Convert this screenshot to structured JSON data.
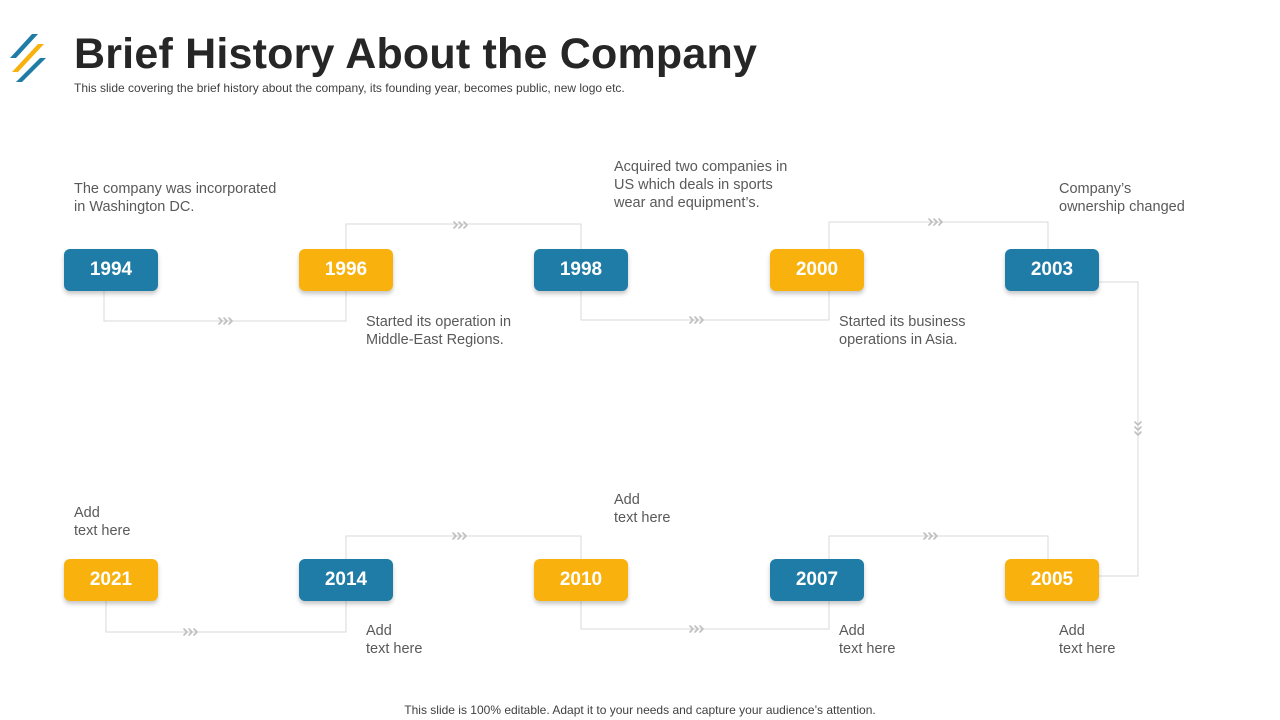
{
  "slide": {
    "title": "Brief History About the Company",
    "subtitle": "This slide covering the brief history about the company, its founding year, becomes public, new logo etc.",
    "footer": "This slide is 100% editable. Adapt it to your needs and capture your audience’s attention."
  },
  "colors": {
    "blue": "#1f7ca6",
    "orange": "#f8b10d",
    "connector": "#d9d9d9",
    "chevron": "#bfbfbf"
  },
  "timeline": {
    "years": [
      "1994",
      "1996",
      "1998",
      "2000",
      "2003",
      "2021",
      "2014",
      "2010",
      "2007",
      "2005"
    ],
    "descriptions": [
      "The company was incorporated\nin Washington DC.",
      "Started its operation in\nMiddle-East Regions.",
      "Acquired two companies in\nUS which deals in sports\nwear and equipment’s.",
      "Started its business\noperations in Asia.",
      "Company’s\nownership changed",
      "Add\ntext here",
      "Add\ntext here",
      "Add\ntext here",
      "Add\ntext here",
      "Add\ntext here"
    ]
  }
}
